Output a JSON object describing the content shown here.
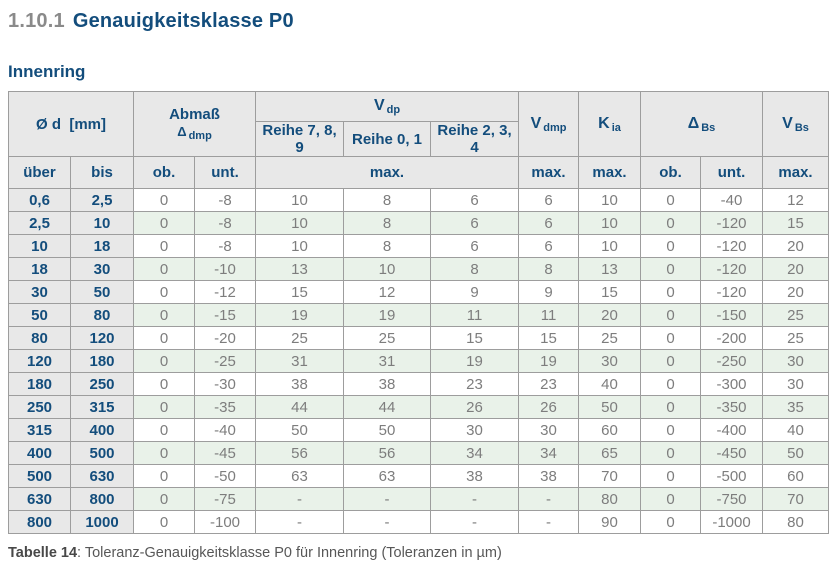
{
  "page": {
    "title_number": "1.10.1",
    "title_text": "Genauigkeitsklasse P0",
    "subtitle": "Innenring",
    "caption_label": "Tabelle 14",
    "caption_text": ": Toleranz-Genauigkeitsklasse P0 für Innenring (Toleranzen in µm)"
  },
  "table": {
    "header": {
      "od_label": "Ø d",
      "od_unit": "[mm]",
      "abmass_line1": "Abmaß",
      "abmass_symbol": "Δ",
      "abmass_sub": "dmp",
      "vdp_main": "V",
      "vdp_sub": "dp",
      "reihe_789": "Reihe 7, 8, 9",
      "reihe_01": "Reihe 0, 1",
      "reihe_234": "Reihe 2, 3, 4",
      "vdmp_main": "V",
      "vdmp_sub": "dmp",
      "kia_main": "K",
      "kia_sub": "ia",
      "dbs_main": "Δ",
      "dbs_sub": "Bs",
      "vbs_main": "V",
      "vbs_sub": "Bs",
      "sub_labels": {
        "ueber": "über",
        "bis": "bis",
        "ob1": "ob.",
        "unt1": "unt.",
        "max_vdp": "max.",
        "max_vdmp": "max.",
        "max_kia": "max.",
        "ob2": "ob.",
        "unt2": "unt.",
        "max_vbs": "max."
      }
    },
    "rows": [
      [
        "0,6",
        "2,5",
        "0",
        "-8",
        "10",
        "8",
        "6",
        "6",
        "10",
        "0",
        "-40",
        "12"
      ],
      [
        "2,5",
        "10",
        "0",
        "-8",
        "10",
        "8",
        "6",
        "6",
        "10",
        "0",
        "-120",
        "15"
      ],
      [
        "10",
        "18",
        "0",
        "-8",
        "10",
        "8",
        "6",
        "6",
        "10",
        "0",
        "-120",
        "20"
      ],
      [
        "18",
        "30",
        "0",
        "-10",
        "13",
        "10",
        "8",
        "8",
        "13",
        "0",
        "-120",
        "20"
      ],
      [
        "30",
        "50",
        "0",
        "-12",
        "15",
        "12",
        "9",
        "9",
        "15",
        "0",
        "-120",
        "20"
      ],
      [
        "50",
        "80",
        "0",
        "-15",
        "19",
        "19",
        "11",
        "11",
        "20",
        "0",
        "-150",
        "25"
      ],
      [
        "80",
        "120",
        "0",
        "-20",
        "25",
        "25",
        "15",
        "15",
        "25",
        "0",
        "-200",
        "25"
      ],
      [
        "120",
        "180",
        "0",
        "-25",
        "31",
        "31",
        "19",
        "19",
        "30",
        "0",
        "-250",
        "30"
      ],
      [
        "180",
        "250",
        "0",
        "-30",
        "38",
        "38",
        "23",
        "23",
        "40",
        "0",
        "-300",
        "30"
      ],
      [
        "250",
        "315",
        "0",
        "-35",
        "44",
        "44",
        "26",
        "26",
        "50",
        "0",
        "-350",
        "35"
      ],
      [
        "315",
        "400",
        "0",
        "-40",
        "50",
        "50",
        "30",
        "30",
        "60",
        "0",
        "-400",
        "40"
      ],
      [
        "400",
        "500",
        "0",
        "-45",
        "56",
        "56",
        "34",
        "34",
        "65",
        "0",
        "-450",
        "50"
      ],
      [
        "500",
        "630",
        "0",
        "-50",
        "63",
        "63",
        "38",
        "38",
        "70",
        "0",
        "-500",
        "60"
      ],
      [
        "630",
        "800",
        "0",
        "-75",
        "-",
        "-",
        "-",
        "-",
        "80",
        "0",
        "-750",
        "70"
      ],
      [
        "800",
        "1000",
        "0",
        "-100",
        "-",
        "-",
        "-",
        "-",
        "90",
        "0",
        "-1000",
        "80"
      ]
    ]
  },
  "colors": {
    "accent_blue": "#134d7c",
    "header_bg": "#e8e8e8",
    "alt_row_green": "#e9f2e9",
    "border_gray": "#9d9d9d",
    "data_text_gray": "#7d7d7d",
    "section_number_gray": "#8a8a8a"
  }
}
